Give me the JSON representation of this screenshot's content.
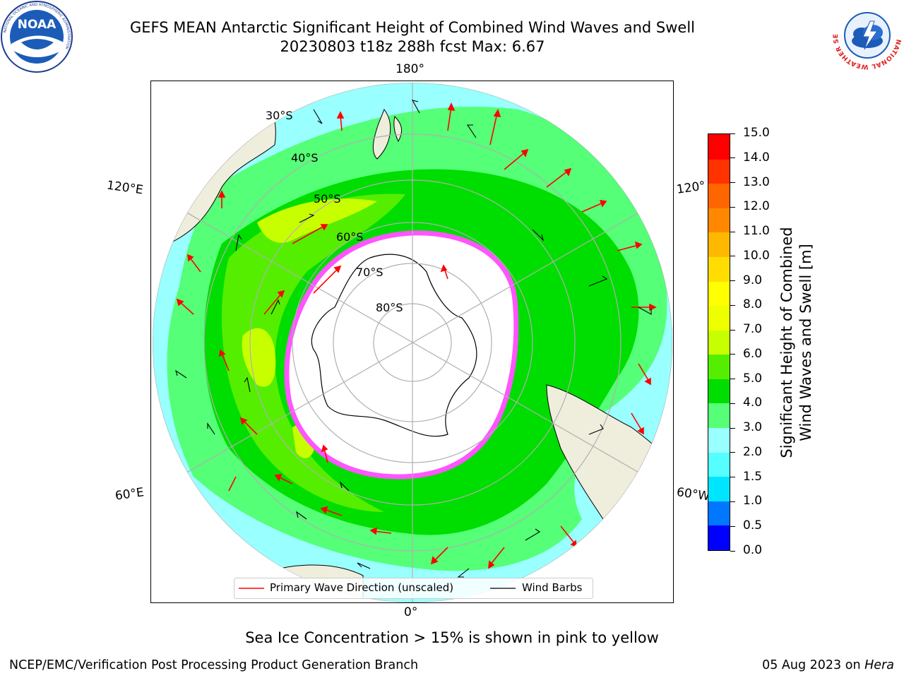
{
  "header": {
    "title": "GEFS MEAN Antarctic Significant Height of Combined Wind Waves and Swell",
    "subtitle": "20230803 t18z 288h fcst   Max: 6.67"
  },
  "logos": {
    "left": {
      "icon": "noaa-logo",
      "label": "NOAA",
      "ring_text": "NATIONAL OCEANIC AND ATMOSPHERIC ADMINISTRATION"
    },
    "right": {
      "icon": "nws-logo",
      "ring_text": "NATIONAL WEATHER SERVICE"
    }
  },
  "map": {
    "projection": "south-polar-stereographic",
    "lon_labels": {
      "top": "180°",
      "bottom": "0°",
      "left_upper": "120°E",
      "left_lower": "60°E",
      "right_upper": "120°W",
      "right_lower": "60°W"
    },
    "lat_labels": [
      "30°S",
      "40°S",
      "50°S",
      "60°S",
      "70°S",
      "80°S"
    ],
    "colors": {
      "land": "#efeddc",
      "ice": "#ffffff",
      "ice_edge": "#ff55ff"
    }
  },
  "legend": {
    "primary_wave": "Primary Wave Direction (unscaled)",
    "wind_barbs": "Wind Barbs",
    "primary_wave_color": "#ff0000",
    "wind_barb_color": "#000000"
  },
  "colorbar": {
    "label_line1": "Significant Height of Combined",
    "label_line2": "Wind Waves and Swell [m]",
    "ticks": [
      "0.0",
      "0.5",
      "1.0",
      "1.5",
      "2.0",
      "3.0",
      "4.0",
      "5.0",
      "6.0",
      "7.0",
      "8.0",
      "9.0",
      "10.0",
      "11.0",
      "12.0",
      "13.0",
      "14.0",
      "15.0"
    ],
    "colors": [
      "#0000ff",
      "#0077ff",
      "#00e5ff",
      "#55ffff",
      "#99ffff",
      "#55ff77",
      "#00dd00",
      "#55ee00",
      "#c8ff00",
      "#eeff00",
      "#ffff00",
      "#ffdd00",
      "#ffb800",
      "#ff8800",
      "#ff6600",
      "#ff3300",
      "#ff0000"
    ]
  },
  "caption": "Sea Ice Concentration > 15% is shown in pink to yellow",
  "footer": {
    "left": "NCEP/EMC/Verification Post Processing Product Generation Branch",
    "date": "05 Aug 2023 on",
    "machine": "Hera"
  }
}
